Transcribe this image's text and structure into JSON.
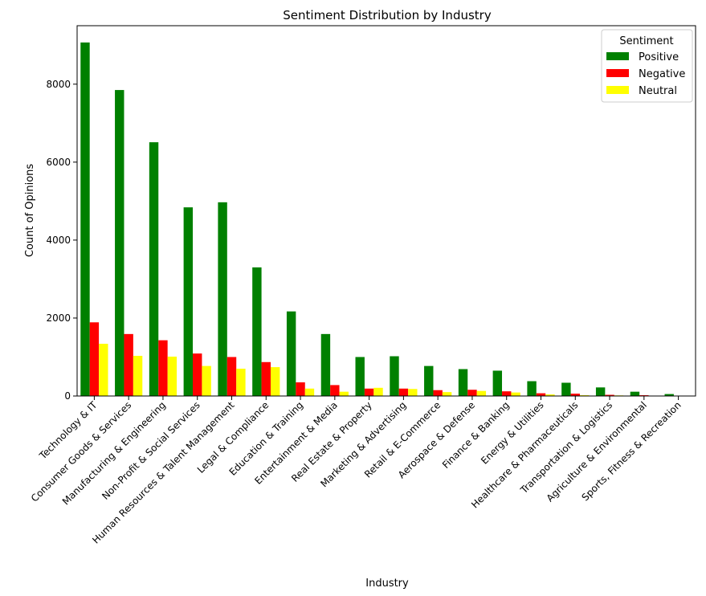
{
  "chart_data": {
    "type": "bar",
    "title": "Sentiment Distribution by Industry",
    "xlabel": "Industry",
    "ylabel": "Count of Opinions",
    "ylim": [
      0,
      9500
    ],
    "yticks": [
      0,
      2000,
      4000,
      6000,
      8000
    ],
    "grid": false,
    "legend": {
      "title": "Sentiment",
      "placement": "top-right"
    },
    "categories": [
      "Technology & IT",
      "Consumer Goods & Services",
      "Manufacturing & Engineering",
      "Non-Profit & Social Services",
      "Human Resources & Talent Management",
      "Legal & Compliance",
      "Education & Training",
      "Entertainment & Media",
      "Real Estate & Property",
      "Marketing & Advertising",
      "Retail & E-Commerce",
      "Aerospace & Defense",
      "Finance & Banking",
      "Energy & Utilities",
      "Healthcare & Pharmaceuticals",
      "Transportation & Logistics",
      "Agriculture & Environmental",
      "Sports, Fitness & Recreation"
    ],
    "series": [
      {
        "name": "Positive",
        "color": "#008000",
        "values": [
          9070,
          7850,
          6510,
          4840,
          4970,
          3300,
          2170,
          1590,
          1000,
          1020,
          770,
          690,
          650,
          380,
          340,
          220,
          110,
          50
        ]
      },
      {
        "name": "Negative",
        "color": "#ff0000",
        "values": [
          1890,
          1590,
          1430,
          1090,
          1000,
          870,
          350,
          280,
          190,
          190,
          150,
          160,
          120,
          70,
          60,
          30,
          20,
          10
        ]
      },
      {
        "name": "Neutral",
        "color": "#ffff00",
        "values": [
          1340,
          1030,
          1010,
          770,
          700,
          740,
          190,
          110,
          210,
          180,
          100,
          130,
          90,
          40,
          20,
          15,
          5,
          5
        ]
      }
    ]
  }
}
